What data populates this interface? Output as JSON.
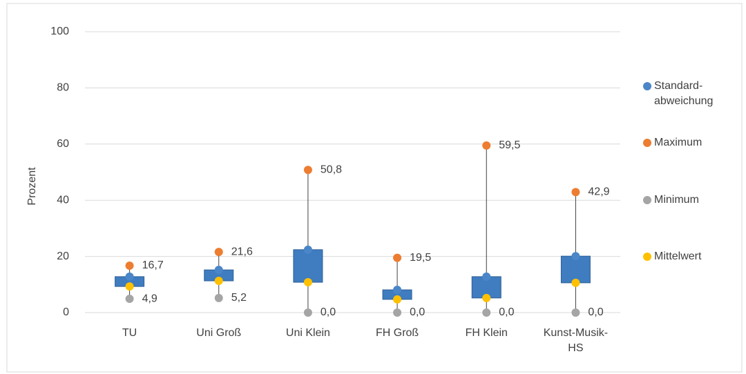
{
  "chart_data": {
    "type": "box",
    "y_label": "Prozent",
    "categories": [
      "TU",
      "Uni Groß",
      "Uni Klein",
      "FH Groß",
      "FH Klein",
      "Kunst-Musik-HS"
    ],
    "ylim": [
      0,
      100
    ],
    "yticks": [
      0,
      20,
      40,
      60,
      80,
      100
    ],
    "grid": true,
    "series": [
      {
        "name": "Standard-abweichung",
        "color": "#4a86c8",
        "values": [
          12.8,
          15.2,
          22.4,
          8.1,
          12.8,
          20.1
        ]
      },
      {
        "name": "Maximum",
        "color": "#ed7d31",
        "values": [
          16.7,
          21.6,
          50.8,
          19.5,
          59.5,
          42.9
        ],
        "value_labels": [
          "16,7",
          "21,6",
          "50,8",
          "19,5",
          "59,5",
          "42,9"
        ]
      },
      {
        "name": "Minimum",
        "color": "#a5a5a5",
        "values": [
          4.9,
          5.2,
          0,
          0,
          0,
          0
        ],
        "value_labels": [
          "4,9",
          "5,2",
          "0,0",
          "0,0",
          "0,0",
          "0,0"
        ]
      },
      {
        "name": "Mittelwert",
        "color": "#ffc000",
        "values": [
          9.3,
          11.3,
          10.8,
          4.7,
          5.2,
          10.6
        ]
      }
    ]
  }
}
